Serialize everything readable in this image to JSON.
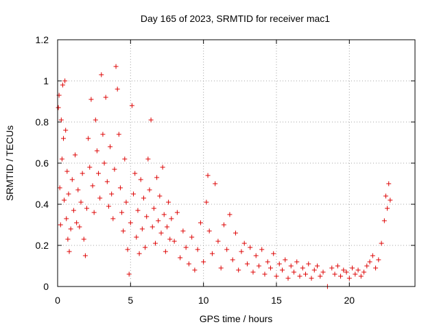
{
  "chart_data": {
    "type": "scatter",
    "title": "Day 165 of 2023, SRMTID for receiver mac1",
    "xlabel": "GPS time / hours",
    "ylabel": "SRMTID / TECUs",
    "xlim": [
      0,
      24.5
    ],
    "ylim": [
      0,
      1.2
    ],
    "x_ticks": [
      0,
      5,
      10,
      15,
      20
    ],
    "y_ticks": [
      0,
      0.2,
      0.4,
      0.6,
      0.8,
      1,
      1.2
    ],
    "x_tick_labels": [
      "0",
      "5",
      "10",
      "15",
      "20"
    ],
    "y_tick_labels": [
      "0",
      "0.2",
      "0.4",
      "0.6",
      "0.8",
      "1",
      "1.2"
    ],
    "grid": true,
    "marker": "plus",
    "color": "#dd0000",
    "series": [
      {
        "name": "SRMTID",
        "points": [
          [
            0.05,
            0.87
          ],
          [
            0.1,
            0.93
          ],
          [
            0.15,
            0.48
          ],
          [
            0.2,
            0.3
          ],
          [
            0.25,
            0.81
          ],
          [
            0.3,
            0.62
          ],
          [
            0.35,
            0.98
          ],
          [
            0.4,
            0.72
          ],
          [
            0.45,
            0.42
          ],
          [
            0.5,
            1.0
          ],
          [
            0.55,
            0.76
          ],
          [
            0.6,
            0.33
          ],
          [
            0.65,
            0.56
          ],
          [
            0.7,
            0.23
          ],
          [
            0.75,
            0.45
          ],
          [
            0.8,
            0.17
          ],
          [
            0.9,
            0.28
          ],
          [
            1.0,
            0.52
          ],
          [
            1.1,
            0.37
          ],
          [
            1.2,
            0.64
          ],
          [
            1.3,
            0.31
          ],
          [
            1.4,
            0.47
          ],
          [
            1.5,
            0.29
          ],
          [
            1.6,
            0.41
          ],
          [
            1.7,
            0.55
          ],
          [
            1.8,
            0.23
          ],
          [
            1.9,
            0.15
          ],
          [
            2.0,
            0.38
          ],
          [
            2.1,
            0.72
          ],
          [
            2.2,
            0.58
          ],
          [
            2.3,
            0.91
          ],
          [
            2.4,
            0.49
          ],
          [
            2.5,
            0.36
          ],
          [
            2.6,
            0.81
          ],
          [
            2.7,
            0.66
          ],
          [
            2.8,
            0.55
          ],
          [
            2.9,
            0.43
          ],
          [
            3.0,
            1.03
          ],
          [
            3.1,
            0.74
          ],
          [
            3.2,
            0.6
          ],
          [
            3.3,
            0.92
          ],
          [
            3.4,
            0.51
          ],
          [
            3.5,
            0.39
          ],
          [
            3.6,
            0.68
          ],
          [
            3.7,
            0.45
          ],
          [
            3.8,
            0.33
          ],
          [
            3.9,
            0.57
          ],
          [
            4.0,
            1.07
          ],
          [
            4.1,
            0.96
          ],
          [
            4.2,
            0.74
          ],
          [
            4.3,
            0.48
          ],
          [
            4.4,
            0.36
          ],
          [
            4.5,
            0.27
          ],
          [
            4.6,
            0.62
          ],
          [
            4.7,
            0.41
          ],
          [
            4.8,
            0.18
          ],
          [
            4.9,
            0.06
          ],
          [
            5.0,
            0.31
          ],
          [
            5.1,
            0.88
          ],
          [
            5.2,
            0.45
          ],
          [
            5.3,
            0.55
          ],
          [
            5.4,
            0.24
          ],
          [
            5.5,
            0.37
          ],
          [
            5.6,
            0.16
          ],
          [
            5.7,
            0.52
          ],
          [
            5.8,
            0.28
          ],
          [
            5.9,
            0.43
          ],
          [
            6.0,
            0.19
          ],
          [
            6.1,
            0.34
          ],
          [
            6.2,
            0.62
          ],
          [
            6.3,
            0.47
          ],
          [
            6.4,
            0.81
          ],
          [
            6.5,
            0.29
          ],
          [
            6.6,
            0.38
          ],
          [
            6.7,
            0.21
          ],
          [
            6.8,
            0.53
          ],
          [
            6.9,
            0.32
          ],
          [
            7.0,
            0.44
          ],
          [
            7.1,
            0.26
          ],
          [
            7.2,
            0.58
          ],
          [
            7.3,
            0.35
          ],
          [
            7.4,
            0.17
          ],
          [
            7.5,
            0.29
          ],
          [
            7.6,
            0.41
          ],
          [
            7.7,
            0.23
          ],
          [
            7.8,
            0.33
          ],
          [
            8.0,
            0.22
          ],
          [
            8.2,
            0.36
          ],
          [
            8.4,
            0.14
          ],
          [
            8.6,
            0.27
          ],
          [
            8.8,
            0.19
          ],
          [
            9.0,
            0.11
          ],
          [
            9.2,
            0.24
          ],
          [
            9.4,
            0.08
          ],
          [
            9.6,
            0.18
          ],
          [
            9.8,
            0.31
          ],
          [
            10.0,
            0.12
          ],
          [
            10.2,
            0.41
          ],
          [
            10.3,
            0.54
          ],
          [
            10.4,
            0.27
          ],
          [
            10.6,
            0.16
          ],
          [
            10.8,
            0.5
          ],
          [
            11.0,
            0.22
          ],
          [
            11.2,
            0.09
          ],
          [
            11.4,
            0.3
          ],
          [
            11.6,
            0.18
          ],
          [
            11.8,
            0.35
          ],
          [
            12.0,
            0.13
          ],
          [
            12.2,
            0.26
          ],
          [
            12.4,
            0.08
          ],
          [
            12.6,
            0.17
          ],
          [
            12.8,
            0.21
          ],
          [
            13.0,
            0.11
          ],
          [
            13.2,
            0.19
          ],
          [
            13.4,
            0.07
          ],
          [
            13.6,
            0.15
          ],
          [
            13.8,
            0.1
          ],
          [
            14.0,
            0.18
          ],
          [
            14.2,
            0.06
          ],
          [
            14.4,
            0.12
          ],
          [
            14.6,
            0.09
          ],
          [
            14.8,
            0.16
          ],
          [
            15.0,
            0.05
          ],
          [
            15.2,
            0.11
          ],
          [
            15.4,
            0.08
          ],
          [
            15.6,
            0.13
          ],
          [
            15.8,
            0.04
          ],
          [
            16.0,
            0.1
          ],
          [
            16.2,
            0.07
          ],
          [
            16.4,
            0.12
          ],
          [
            16.6,
            0.05
          ],
          [
            16.8,
            0.09
          ],
          [
            17.0,
            0.06
          ],
          [
            17.2,
            0.11
          ],
          [
            17.4,
            0.04
          ],
          [
            17.6,
            0.08
          ],
          [
            17.8,
            0.1
          ],
          [
            18.0,
            0.05
          ],
          [
            18.2,
            0.07
          ],
          [
            18.5,
            0.0
          ],
          [
            18.8,
            0.09
          ],
          [
            19.0,
            0.06
          ],
          [
            19.2,
            0.1
          ],
          [
            19.4,
            0.05
          ],
          [
            19.6,
            0.08
          ],
          [
            19.8,
            0.07
          ],
          [
            20.0,
            0.04
          ],
          [
            20.2,
            0.09
          ],
          [
            20.4,
            0.06
          ],
          [
            20.6,
            0.08
          ],
          [
            20.8,
            0.05
          ],
          [
            21.0,
            0.07
          ],
          [
            21.2,
            0.1
          ],
          [
            21.4,
            0.12
          ],
          [
            21.6,
            0.15
          ],
          [
            21.8,
            0.09
          ],
          [
            22.0,
            0.13
          ],
          [
            22.2,
            0.21
          ],
          [
            22.4,
            0.32
          ],
          [
            22.5,
            0.44
          ],
          [
            22.6,
            0.38
          ],
          [
            22.7,
            0.5
          ],
          [
            22.8,
            0.42
          ]
        ]
      }
    ]
  }
}
